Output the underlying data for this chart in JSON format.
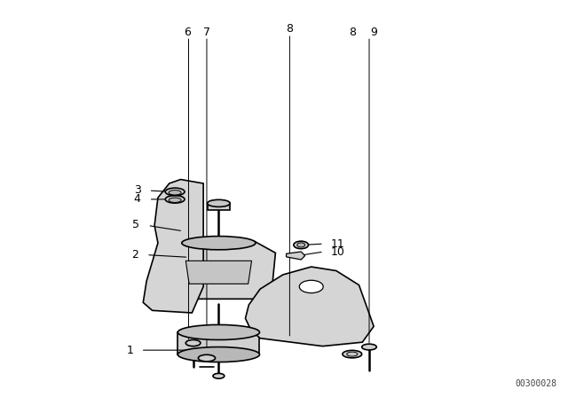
{
  "title": "",
  "background_color": "#ffffff",
  "line_color": "#000000",
  "label_color": "#000000",
  "diagram_id": "00300028",
  "fig_width": 6.4,
  "fig_height": 4.48,
  "dpi": 100
}
